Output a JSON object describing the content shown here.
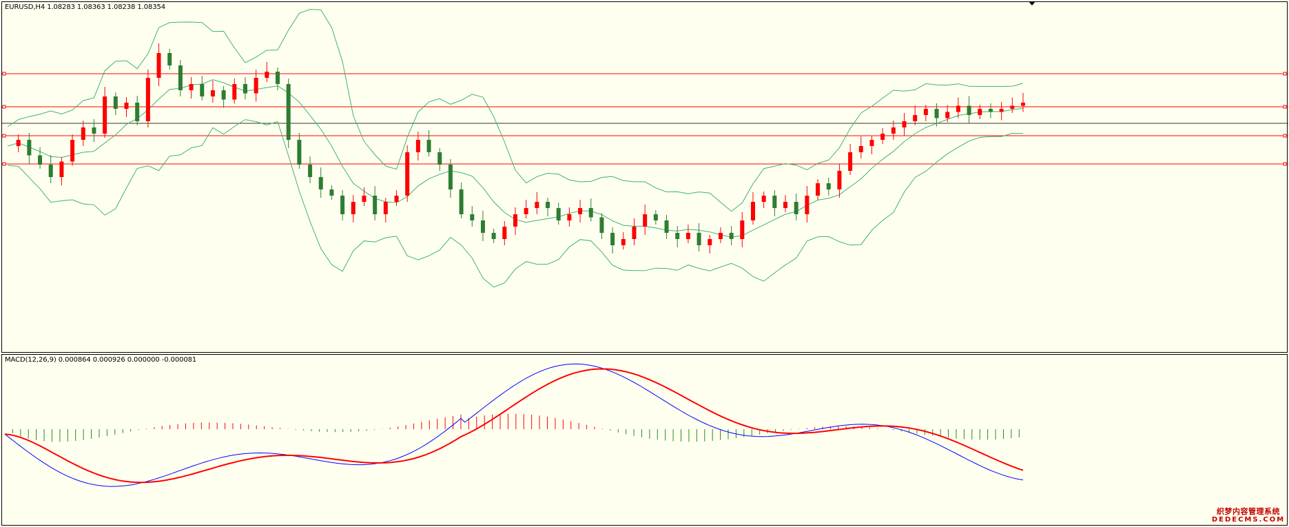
{
  "price_pane": {
    "label": "EURUSD,H4  1.08283 1.08363 1.08238 1.08354"
  },
  "macd_pane": {
    "label": "MACD(12,26,9) 0.000864 0.000926 0.000000 -0.000081"
  },
  "watermark": {
    "line1": "织梦内容管理系统",
    "line2": "DEDECMS.COM"
  },
  "colors": {
    "background": "#fffff0",
    "bull_candle": "#ff0000",
    "bear_candle": "#2e7d32",
    "bollinger": "#3cb371",
    "level_line": "#ff0000",
    "bid_line": "#333333",
    "macd_line": "#0000ff",
    "signal_line": "#ff0000",
    "hist_pos": "#ff0000",
    "hist_neg": "#228b22"
  },
  "chart_data": [
    {
      "type": "candlestick",
      "symbol": "EURUSD",
      "timeframe": "H4",
      "last_bar": {
        "open": 1.08283,
        "high": 1.08363,
        "low": 1.08238,
        "close": 1.08354
      },
      "overlays": [
        "Bollinger Bands"
      ],
      "horizontal_levels": 4,
      "candle_path": [
        0.42,
        0.4,
        0.45,
        0.48,
        0.52,
        0.47,
        0.4,
        0.36,
        0.38,
        0.26,
        0.3,
        0.28,
        0.34,
        0.2,
        0.12,
        0.16,
        0.24,
        0.22,
        0.26,
        0.24,
        0.27,
        0.22,
        0.25,
        0.2,
        0.18,
        0.22,
        0.4,
        0.48,
        0.52,
        0.56,
        0.58,
        0.64,
        0.6,
        0.58,
        0.64,
        0.6,
        0.58,
        0.44,
        0.4,
        0.44,
        0.48,
        0.56,
        0.64,
        0.66,
        0.7,
        0.72,
        0.68,
        0.64,
        0.62,
        0.6,
        0.62,
        0.66,
        0.64,
        0.62,
        0.65,
        0.7,
        0.74,
        0.72,
        0.68,
        0.64,
        0.66,
        0.7,
        0.72,
        0.7,
        0.74,
        0.72,
        0.7,
        0.72,
        0.66,
        0.6,
        0.58,
        0.62,
        0.6,
        0.64,
        0.58,
        0.54,
        0.56,
        0.5,
        0.44,
        0.42,
        0.4,
        0.38,
        0.36,
        0.34,
        0.32,
        0.3,
        0.33,
        0.31,
        0.29,
        0.32,
        0.3,
        0.31,
        0.3,
        0.29,
        0.28
      ],
      "bands": "upper / middle / lower Bollinger bands around price"
    },
    {
      "type": "line",
      "indicator": "MACD(12,26,9)",
      "values": {
        "macd": 0.000864,
        "signal": 0.000926,
        "histogram_pos": 0.0,
        "histogram_neg": -8.1e-05
      },
      "series": [
        {
          "name": "MACD",
          "color": "#0000ff"
        },
        {
          "name": "Signal",
          "color": "#ff0000"
        }
      ]
    }
  ]
}
